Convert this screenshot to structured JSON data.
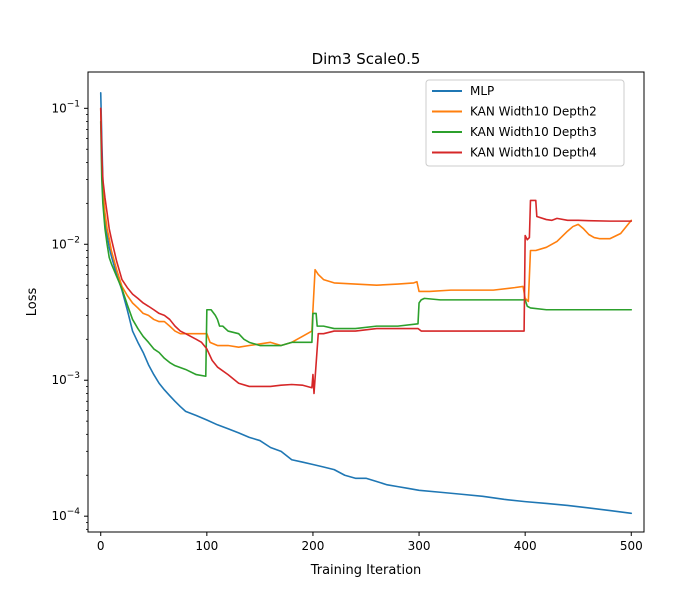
{
  "chart_data": {
    "type": "line",
    "title": "Dim3 Scale0.5",
    "xlabel": "Training Iteration",
    "ylabel": "Loss",
    "yscale": "log",
    "xlim": [
      -12,
      512
    ],
    "ylim": [
      7.65e-05,
      0.185
    ],
    "x_ticks": [
      0,
      100,
      200,
      300,
      400,
      500
    ],
    "x_tick_labels": [
      "0",
      "100",
      "200",
      "300",
      "400",
      "500"
    ],
    "y_ticks": [
      0.0001,
      0.001,
      0.01,
      0.1
    ],
    "y_tick_labels": [
      "10",
      "10",
      "10",
      "10"
    ],
    "y_tick_exponents": [
      "−4",
      "−3",
      "−2",
      "−1"
    ],
    "legend_position": "top-right",
    "series": [
      {
        "name": "MLP",
        "color": "#1f77b4",
        "points": [
          [
            0,
            0.13
          ],
          [
            1,
            0.06
          ],
          [
            2,
            0.03
          ],
          [
            3,
            0.02
          ],
          [
            5,
            0.013
          ],
          [
            8,
            0.0095
          ],
          [
            10,
            0.0082
          ],
          [
            15,
            0.006
          ],
          [
            20,
            0.0046
          ],
          [
            25,
            0.0033
          ],
          [
            30,
            0.0023
          ],
          [
            35,
            0.0019
          ],
          [
            40,
            0.0016
          ],
          [
            45,
            0.0013
          ],
          [
            50,
            0.0011
          ],
          [
            55,
            0.00095
          ],
          [
            60,
            0.00085
          ],
          [
            65,
            0.00077
          ],
          [
            70,
            0.0007
          ],
          [
            75,
            0.00064
          ],
          [
            80,
            0.00059
          ],
          [
            90,
            0.00055
          ],
          [
            100,
            0.00051
          ],
          [
            110,
            0.00047
          ],
          [
            120,
            0.00044
          ],
          [
            130,
            0.00041
          ],
          [
            140,
            0.00038
          ],
          [
            150,
            0.00036
          ],
          [
            160,
            0.00032
          ],
          [
            170,
            0.0003
          ],
          [
            180,
            0.00026
          ],
          [
            190,
            0.00025
          ],
          [
            200,
            0.00024
          ],
          [
            210,
            0.00023
          ],
          [
            220,
            0.00022
          ],
          [
            230,
            0.0002
          ],
          [
            240,
            0.00019
          ],
          [
            250,
            0.00019
          ],
          [
            260,
            0.00018
          ],
          [
            270,
            0.00017
          ],
          [
            280,
            0.000165
          ],
          [
            290,
            0.00016
          ],
          [
            300,
            0.000155
          ],
          [
            320,
            0.00015
          ],
          [
            340,
            0.000145
          ],
          [
            360,
            0.00014
          ],
          [
            380,
            0.000133
          ],
          [
            400,
            0.000128
          ],
          [
            420,
            0.000124
          ],
          [
            440,
            0.00012
          ],
          [
            460,
            0.000115
          ],
          [
            480,
            0.00011
          ],
          [
            500,
            0.000105
          ]
        ]
      },
      {
        "name": "KAN Width10 Depth2",
        "color": "#ff7f0e",
        "points": [
          [
            0,
            0.1
          ],
          [
            1,
            0.04
          ],
          [
            2,
            0.025
          ],
          [
            4,
            0.017
          ],
          [
            6,
            0.013
          ],
          [
            8,
            0.011
          ],
          [
            10,
            0.009
          ],
          [
            15,
            0.0065
          ],
          [
            20,
            0.0049
          ],
          [
            25,
            0.0042
          ],
          [
            30,
            0.0037
          ],
          [
            35,
            0.0034
          ],
          [
            40,
            0.0031
          ],
          [
            45,
            0.003
          ],
          [
            50,
            0.0028
          ],
          [
            55,
            0.0027
          ],
          [
            60,
            0.0027
          ],
          [
            65,
            0.0025
          ],
          [
            70,
            0.0023
          ],
          [
            75,
            0.0022
          ],
          [
            80,
            0.0022
          ],
          [
            90,
            0.0022
          ],
          [
            100,
            0.0022
          ],
          [
            103,
            0.0019
          ],
          [
            110,
            0.0018
          ],
          [
            120,
            0.0018
          ],
          [
            130,
            0.00175
          ],
          [
            140,
            0.0018
          ],
          [
            150,
            0.00185
          ],
          [
            160,
            0.0019
          ],
          [
            170,
            0.0018
          ],
          [
            180,
            0.0019
          ],
          [
            190,
            0.0021
          ],
          [
            199,
            0.0023
          ],
          [
            200,
            0.0033
          ],
          [
            202,
            0.0065
          ],
          [
            205,
            0.006
          ],
          [
            210,
            0.0055
          ],
          [
            220,
            0.0052
          ],
          [
            240,
            0.0051
          ],
          [
            260,
            0.005
          ],
          [
            280,
            0.0051
          ],
          [
            295,
            0.0052
          ],
          [
            298,
            0.0053
          ],
          [
            300,
            0.0045
          ],
          [
            310,
            0.0045
          ],
          [
            330,
            0.0046
          ],
          [
            350,
            0.0046
          ],
          [
            370,
            0.0046
          ],
          [
            390,
            0.0048
          ],
          [
            398,
            0.0049
          ],
          [
            400,
            0.004
          ],
          [
            403,
            0.0038
          ],
          [
            405,
            0.009
          ],
          [
            410,
            0.009
          ],
          [
            420,
            0.0095
          ],
          [
            430,
            0.0105
          ],
          [
            440,
            0.0125
          ],
          [
            445,
            0.0135
          ],
          [
            450,
            0.014
          ],
          [
            455,
            0.013
          ],
          [
            460,
            0.0118
          ],
          [
            465,
            0.0112
          ],
          [
            470,
            0.011
          ],
          [
            480,
            0.011
          ],
          [
            490,
            0.012
          ],
          [
            500,
            0.015
          ]
        ]
      },
      {
        "name": "KAN Width10 Depth3",
        "color": "#2ca02c",
        "points": [
          [
            0,
            0.08
          ],
          [
            1,
            0.03
          ],
          [
            2,
            0.02
          ],
          [
            4,
            0.013
          ],
          [
            6,
            0.01
          ],
          [
            8,
            0.008
          ],
          [
            10,
            0.0072
          ],
          [
            15,
            0.0058
          ],
          [
            20,
            0.0047
          ],
          [
            25,
            0.0036
          ],
          [
            30,
            0.0028
          ],
          [
            35,
            0.0024
          ],
          [
            40,
            0.0021
          ],
          [
            45,
            0.0019
          ],
          [
            50,
            0.0017
          ],
          [
            55,
            0.0016
          ],
          [
            60,
            0.00145
          ],
          [
            65,
            0.00135
          ],
          [
            70,
            0.00128
          ],
          [
            80,
            0.0012
          ],
          [
            90,
            0.0011
          ],
          [
            99,
            0.00107
          ],
          [
            100,
            0.0033
          ],
          [
            104,
            0.0033
          ],
          [
            108,
            0.003
          ],
          [
            110,
            0.0028
          ],
          [
            112,
            0.0025
          ],
          [
            115,
            0.0025
          ],
          [
            120,
            0.0023
          ],
          [
            130,
            0.0022
          ],
          [
            135,
            0.002
          ],
          [
            140,
            0.0019
          ],
          [
            150,
            0.0018
          ],
          [
            160,
            0.0018
          ],
          [
            170,
            0.0018
          ],
          [
            180,
            0.0019
          ],
          [
            199,
            0.0019
          ],
          [
            200,
            0.0031
          ],
          [
            203,
            0.0031
          ],
          [
            204,
            0.0025
          ],
          [
            210,
            0.0025
          ],
          [
            220,
            0.0024
          ],
          [
            240,
            0.0024
          ],
          [
            260,
            0.0025
          ],
          [
            280,
            0.0025
          ],
          [
            299,
            0.0026
          ],
          [
            300,
            0.0037
          ],
          [
            302,
            0.0039
          ],
          [
            305,
            0.004
          ],
          [
            320,
            0.0039
          ],
          [
            350,
            0.0039
          ],
          [
            380,
            0.0039
          ],
          [
            400,
            0.0039
          ],
          [
            402,
            0.0035
          ],
          [
            405,
            0.0034
          ],
          [
            420,
            0.0033
          ],
          [
            450,
            0.0033
          ],
          [
            480,
            0.0033
          ],
          [
            500,
            0.0033
          ]
        ]
      },
      {
        "name": "KAN Width10 Depth4",
        "color": "#d62728",
        "points": [
          [
            0,
            0.1
          ],
          [
            1,
            0.045
          ],
          [
            2,
            0.03
          ],
          [
            4,
            0.022
          ],
          [
            6,
            0.017
          ],
          [
            8,
            0.013
          ],
          [
            10,
            0.011
          ],
          [
            15,
            0.0075
          ],
          [
            20,
            0.0055
          ],
          [
            25,
            0.0048
          ],
          [
            30,
            0.0043
          ],
          [
            35,
            0.004
          ],
          [
            40,
            0.0037
          ],
          [
            45,
            0.0035
          ],
          [
            50,
            0.0033
          ],
          [
            55,
            0.0031
          ],
          [
            60,
            0.003
          ],
          [
            65,
            0.0028
          ],
          [
            70,
            0.0025
          ],
          [
            75,
            0.0023
          ],
          [
            80,
            0.0022
          ],
          [
            90,
            0.002
          ],
          [
            95,
            0.0019
          ],
          [
            100,
            0.0017
          ],
          [
            105,
            0.0014
          ],
          [
            110,
            0.00125
          ],
          [
            120,
            0.0011
          ],
          [
            130,
            0.00095
          ],
          [
            140,
            0.0009
          ],
          [
            150,
            0.0009
          ],
          [
            160,
            0.0009
          ],
          [
            170,
            0.00092
          ],
          [
            180,
            0.00093
          ],
          [
            190,
            0.00092
          ],
          [
            199,
            0.00088
          ],
          [
            200,
            0.0011
          ],
          [
            201,
            0.0008
          ],
          [
            205,
            0.0022
          ],
          [
            210,
            0.0022
          ],
          [
            220,
            0.0023
          ],
          [
            240,
            0.0023
          ],
          [
            260,
            0.0024
          ],
          [
            280,
            0.0024
          ],
          [
            299,
            0.0024
          ],
          [
            302,
            0.0023
          ],
          [
            320,
            0.0023
          ],
          [
            340,
            0.0023
          ],
          [
            360,
            0.0023
          ],
          [
            380,
            0.0023
          ],
          [
            399,
            0.0023
          ],
          [
            400,
            0.0116
          ],
          [
            402,
            0.0108
          ],
          [
            404,
            0.0112
          ],
          [
            405,
            0.021
          ],
          [
            410,
            0.021
          ],
          [
            411,
            0.016
          ],
          [
            420,
            0.0152
          ],
          [
            425,
            0.015
          ],
          [
            430,
            0.0155
          ],
          [
            440,
            0.015
          ],
          [
            450,
            0.015
          ],
          [
            460,
            0.0149
          ],
          [
            480,
            0.0148
          ],
          [
            500,
            0.0148
          ]
        ]
      }
    ]
  }
}
